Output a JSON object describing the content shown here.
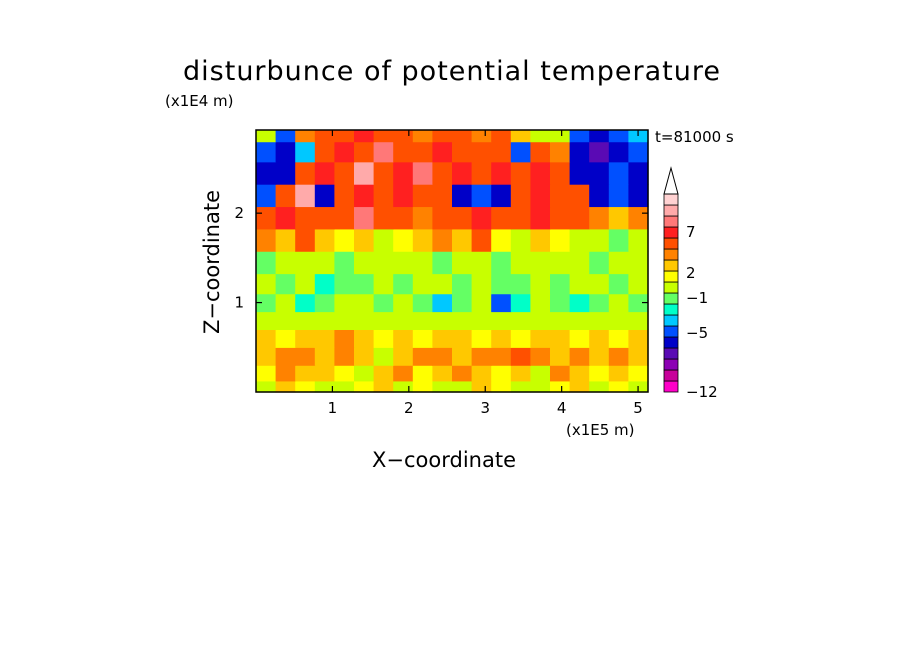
{
  "chart_data": {
    "type": "heatmap",
    "title": "disturbunce of potential temperature",
    "xlabel": "X−coordinate",
    "ylabel": "Z−coordinate",
    "x_unit": "(x1E5 m)",
    "y_unit": "(x1E4 m)",
    "annotation": "t=81000 s",
    "xlim": [
      0,
      5.13
    ],
    "ylim": [
      0,
      2.93
    ],
    "x_ticks": [
      1,
      2,
      3,
      4,
      5
    ],
    "x_tick_labels": [
      "1",
      "2",
      "3",
      "4",
      "5"
    ],
    "y_ticks": [
      1,
      2
    ],
    "y_tick_labels": [
      "1",
      "2"
    ],
    "colorbar": {
      "levels_labeled": [
        "7",
        "2",
        "−1",
        "−5",
        "−12"
      ],
      "colors": [
        "#ff00c8",
        "#c8009a",
        "#8c00b4",
        "#5a0ab4",
        "#0000c8",
        "#0050ff",
        "#00c8ff",
        "#00ffc8",
        "#64ff64",
        "#c8ff00",
        "#ffff00",
        "#ffc800",
        "#ff8200",
        "#ff5000",
        "#ff2020",
        "#ff7878",
        "#ffaaaa",
        "#ffd2d2"
      ],
      "extend": "max"
    },
    "z_rows_bottom_to_top": [
      {
        "z": 0.05,
        "values": [
          0,
          2,
          1,
          -1,
          0,
          1,
          2,
          0,
          1,
          -1,
          0,
          2,
          1,
          0,
          -1,
          1,
          2,
          0,
          1,
          0
        ]
      },
      {
        "z": 0.2,
        "values": [
          1,
          3,
          2,
          2,
          1,
          -1,
          2,
          3,
          1,
          2,
          3,
          2,
          1,
          2,
          0,
          3,
          2,
          1,
          2,
          1
        ]
      },
      {
        "z": 0.4,
        "values": [
          2,
          3,
          3,
          2,
          3,
          2,
          0,
          2,
          3,
          3,
          2,
          3,
          3,
          4,
          3,
          2,
          3,
          2,
          3,
          2
        ]
      },
      {
        "z": 0.6,
        "values": [
          2,
          1,
          2,
          2,
          3,
          2,
          1,
          2,
          1,
          2,
          2,
          1,
          2,
          1,
          2,
          2,
          1,
          2,
          1,
          2
        ]
      },
      {
        "z": 0.8,
        "values": [
          0,
          0,
          -1,
          0,
          -1,
          0,
          -1,
          0,
          0,
          -1,
          0,
          -1,
          0,
          -1,
          -1,
          0,
          -1,
          0,
          -1,
          0
        ]
      },
      {
        "z": 1.0,
        "values": [
          -2,
          -1,
          -3,
          -2,
          -1,
          -1,
          -2,
          -1,
          -2,
          -4,
          -2,
          -1,
          -5,
          -3,
          -1,
          -2,
          -3,
          -2,
          -1,
          -2
        ]
      },
      {
        "z": 1.2,
        "values": [
          -1,
          -2,
          -1,
          -3,
          -2,
          -2,
          -1,
          -2,
          -1,
          -1,
          -2,
          -1,
          -2,
          -2,
          -1,
          -2,
          -1,
          -1,
          -2,
          -1
        ]
      },
      {
        "z": 1.45,
        "values": [
          -2,
          -1,
          0,
          -1,
          -2,
          -1,
          -1,
          0,
          -1,
          -2,
          -1,
          -1,
          -2,
          -1,
          0,
          -1,
          -1,
          -2,
          -1,
          -1
        ]
      },
      {
        "z": 1.7,
        "values": [
          3,
          2,
          4,
          2,
          1,
          2,
          0,
          1,
          2,
          3,
          2,
          4,
          1,
          0,
          2,
          1,
          0,
          -1,
          -2,
          -1
        ]
      },
      {
        "z": 1.95,
        "values": [
          4,
          6,
          5,
          4,
          5,
          7,
          4,
          5,
          3,
          4,
          5,
          6,
          4,
          5,
          6,
          5,
          4,
          3,
          2,
          3
        ]
      },
      {
        "z": 2.2,
        "values": [
          -5,
          5,
          8,
          -6,
          5,
          6,
          4,
          6,
          5,
          5,
          -6,
          -5,
          -6,
          5,
          6,
          5,
          4,
          -6,
          -5,
          -6
        ]
      },
      {
        "z": 2.45,
        "values": [
          -6,
          -7,
          5,
          6,
          4,
          8,
          5,
          6,
          7,
          5,
          6,
          5,
          6,
          4,
          6,
          5,
          -6,
          -7,
          -5,
          -6
        ]
      },
      {
        "z": 2.7,
        "values": [
          -5,
          -6,
          -4,
          4,
          6,
          4,
          7,
          5,
          4,
          6,
          5,
          4,
          5,
          -5,
          4,
          3,
          -6,
          -8,
          -6,
          -5
        ]
      },
      {
        "z": 2.9,
        "values": [
          0,
          -5,
          3,
          5,
          4,
          6,
          5,
          4,
          3,
          5,
          4,
          3,
          4,
          2,
          -1,
          0,
          -5,
          -6,
          -5,
          -4
        ]
      }
    ]
  }
}
